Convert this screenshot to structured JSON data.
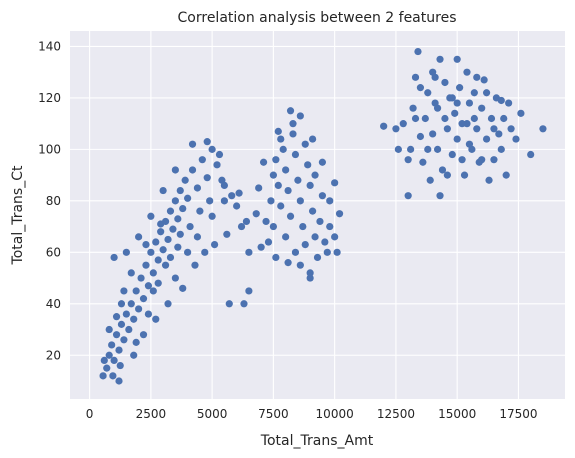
{
  "chart_data": {
    "type": "scatter",
    "title": "Correlation analysis between 2 features",
    "xlabel": "Total_Trans_Amt",
    "ylabel": "Total_Trans_Ct",
    "xlim": [
      -800,
      19400
    ],
    "ylim": [
      3,
      146
    ],
    "xticks": [
      0,
      2500,
      5000,
      7500,
      10000,
      12500,
      15000,
      17500
    ],
    "yticks": [
      20,
      40,
      60,
      80,
      100,
      120,
      140
    ],
    "grid": true,
    "colors": {
      "marker": "#4c72b0",
      "plot_bg": "#eaeaf2",
      "grid": "#ffffff"
    },
    "series": [
      {
        "points": [
          [
            550,
            12
          ],
          [
            700,
            15
          ],
          [
            800,
            20
          ],
          [
            900,
            24
          ],
          [
            1000,
            18
          ],
          [
            1100,
            28
          ],
          [
            1200,
            22
          ],
          [
            1300,
            32
          ],
          [
            1400,
            26
          ],
          [
            1500,
            36
          ],
          [
            1600,
            30
          ],
          [
            1700,
            40
          ],
          [
            1800,
            34
          ],
          [
            1900,
            45
          ],
          [
            2000,
            38
          ],
          [
            2100,
            50
          ],
          [
            2200,
            42
          ],
          [
            2300,
            55
          ],
          [
            2400,
            47
          ],
          [
            2500,
            60
          ],
          [
            2600,
            52
          ],
          [
            2700,
            64
          ],
          [
            2800,
            57
          ],
          [
            2900,
            68
          ],
          [
            3000,
            61
          ],
          [
            3100,
            72
          ],
          [
            3200,
            65
          ],
          [
            3300,
            76
          ],
          [
            3400,
            69
          ],
          [
            3500,
            80
          ],
          [
            3600,
            73
          ],
          [
            3700,
            84
          ],
          [
            3800,
            77
          ],
          [
            3900,
            88
          ],
          [
            4000,
            81
          ],
          [
            4200,
            92
          ],
          [
            4400,
            85
          ],
          [
            4600,
            96
          ],
          [
            4800,
            89
          ],
          [
            5000,
            100
          ],
          [
            5200,
            94
          ],
          [
            5500,
            86
          ],
          [
            5800,
            82
          ],
          [
            6000,
            78
          ],
          [
            6200,
            70
          ],
          [
            6500,
            45
          ],
          [
            5700,
            40
          ],
          [
            6300,
            40
          ],
          [
            1000,
            58
          ],
          [
            1200,
            10
          ],
          [
            1500,
            60
          ],
          [
            2000,
            66
          ],
          [
            2500,
            74
          ],
          [
            3000,
            84
          ],
          [
            3500,
            92
          ],
          [
            4200,
            102
          ],
          [
            4800,
            103
          ],
          [
            5300,
            98
          ],
          [
            1800,
            20
          ],
          [
            2200,
            28
          ],
          [
            2700,
            34
          ],
          [
            3200,
            40
          ],
          [
            3800,
            46
          ],
          [
            4300,
            55
          ],
          [
            4700,
            60
          ],
          [
            5100,
            63
          ],
          [
            5600,
            67
          ],
          [
            1300,
            40
          ],
          [
            1700,
            52
          ],
          [
            2300,
            63
          ],
          [
            2900,
            71
          ],
          [
            3600,
            62
          ],
          [
            4100,
            70
          ],
          [
            4500,
            76
          ],
          [
            4900,
            80
          ],
          [
            5400,
            88
          ],
          [
            6100,
            83
          ],
          [
            6400,
            72
          ],
          [
            2600,
            45
          ],
          [
            3100,
            55
          ],
          [
            3500,
            50
          ],
          [
            4000,
            60
          ],
          [
            800,
            30
          ],
          [
            1100,
            35
          ],
          [
            1400,
            45
          ],
          [
            1900,
            25
          ],
          [
            2400,
            36
          ],
          [
            2800,
            48
          ],
          [
            3300,
            58
          ],
          [
            3700,
            67
          ],
          [
            4400,
            66
          ],
          [
            5000,
            74
          ],
          [
            5500,
            80
          ],
          [
            600,
            18
          ],
          [
            950,
            12
          ],
          [
            1250,
            16
          ],
          [
            7200,
            72
          ],
          [
            7400,
            80
          ],
          [
            7500,
            90
          ],
          [
            7600,
            96
          ],
          [
            7700,
            86
          ],
          [
            7800,
            78
          ],
          [
            7900,
            100
          ],
          [
            8000,
            92
          ],
          [
            8100,
            84
          ],
          [
            8200,
            74
          ],
          [
            8300,
            106
          ],
          [
            8400,
            98
          ],
          [
            8500,
            88
          ],
          [
            8600,
            80
          ],
          [
            8700,
            70
          ],
          [
            8800,
            102
          ],
          [
            8900,
            94
          ],
          [
            9000,
            86
          ],
          [
            9100,
            76
          ],
          [
            9200,
            66
          ],
          [
            9300,
            58
          ],
          [
            9400,
            72
          ],
          [
            9500,
            82
          ],
          [
            9600,
            64
          ],
          [
            9700,
            60
          ],
          [
            9800,
            70
          ],
          [
            10000,
            66
          ],
          [
            10200,
            75
          ],
          [
            10100,
            60
          ],
          [
            9000,
            52
          ],
          [
            8600,
            113
          ],
          [
            8200,
            115
          ],
          [
            7700,
            107
          ],
          [
            7600,
            58
          ],
          [
            8100,
            56
          ],
          [
            9000,
            50
          ],
          [
            7300,
            64
          ],
          [
            7000,
            62
          ],
          [
            6900,
            85
          ],
          [
            7100,
            95
          ],
          [
            8000,
            66
          ],
          [
            8400,
            60
          ],
          [
            8800,
            63
          ],
          [
            9200,
            90
          ],
          [
            9500,
            95
          ],
          [
            9100,
            104
          ],
          [
            7800,
            104
          ],
          [
            8300,
            110
          ],
          [
            10000,
            87
          ],
          [
            9800,
            80
          ],
          [
            7500,
            70
          ],
          [
            8600,
            55
          ],
          [
            6500,
            60
          ],
          [
            6800,
            75
          ],
          [
            12500,
            108
          ],
          [
            12800,
            110
          ],
          [
            13000,
            82
          ],
          [
            13100,
            100
          ],
          [
            13200,
            116
          ],
          [
            13300,
            128
          ],
          [
            13400,
            138
          ],
          [
            13500,
            105
          ],
          [
            13600,
            95
          ],
          [
            13700,
            112
          ],
          [
            13800,
            122
          ],
          [
            13900,
            88
          ],
          [
            14000,
            130
          ],
          [
            14100,
            118
          ],
          [
            14200,
            100
          ],
          [
            14300,
            135
          ],
          [
            14400,
            92
          ],
          [
            14500,
            126
          ],
          [
            14600,
            108
          ],
          [
            14700,
            120
          ],
          [
            14800,
            98
          ],
          [
            14900,
            114
          ],
          [
            15000,
            104
          ],
          [
            15100,
            124
          ],
          [
            15200,
            110
          ],
          [
            15300,
            90
          ],
          [
            15400,
            130
          ],
          [
            15500,
            118
          ],
          [
            15600,
            100
          ],
          [
            15700,
            122
          ],
          [
            15800,
            108
          ],
          [
            15900,
            95
          ],
          [
            16000,
            116
          ],
          [
            16100,
            127
          ],
          [
            16200,
            104
          ],
          [
            16300,
            88
          ],
          [
            16400,
            112
          ],
          [
            16500,
            96
          ],
          [
            16600,
            120
          ],
          [
            16700,
            106
          ],
          [
            16800,
            100
          ],
          [
            16900,
            112
          ],
          [
            17000,
            90
          ],
          [
            17100,
            118
          ],
          [
            17200,
            108
          ],
          [
            17400,
            104
          ],
          [
            17600,
            114
          ],
          [
            18000,
            98
          ],
          [
            18500,
            108
          ],
          [
            13000,
            96
          ],
          [
            13500,
            124
          ],
          [
            14000,
            106
          ],
          [
            14500,
            112
          ],
          [
            15000,
            118
          ],
          [
            15500,
            102
          ],
          [
            16000,
            96
          ],
          [
            14200,
            116
          ],
          [
            14800,
            120
          ],
          [
            15400,
            110
          ],
          [
            13800,
            100
          ],
          [
            15200,
            96
          ],
          [
            14600,
            90
          ],
          [
            16200,
            122
          ],
          [
            13300,
            112
          ],
          [
            14100,
            128
          ],
          [
            15700,
            112
          ],
          [
            16500,
            108
          ],
          [
            12000,
            109
          ],
          [
            12600,
            100
          ],
          [
            15000,
            135
          ],
          [
            14300,
            82
          ],
          [
            16800,
            119
          ],
          [
            15800,
            128
          ]
        ]
      }
    ]
  }
}
